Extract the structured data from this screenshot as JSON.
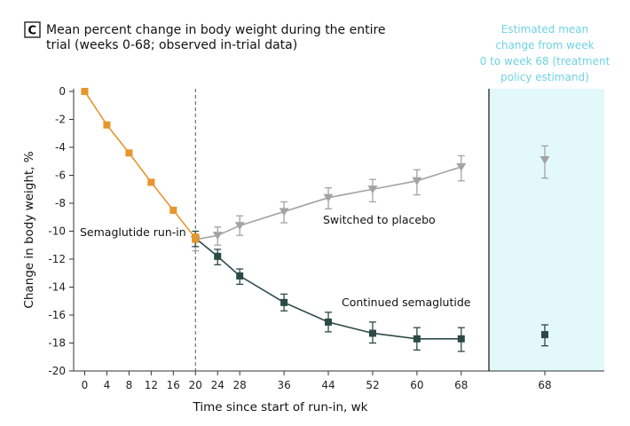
{
  "panel_label": "C",
  "title_lines": [
    "Mean percent change in body weight during the entire",
    "trial (weeks 0-68; observed in-trial data)"
  ],
  "colors": {
    "run_in": "#e8952e",
    "placebo": "#a3a3a3",
    "semaglutide": "#2c4a45",
    "estimand_panel": "#e3f8fa",
    "estimand_text": "#6fd3e3",
    "axis": "#333333"
  },
  "chart_data": {
    "type": "line",
    "title": "Mean percent change in body weight during the entire trial (weeks 0-68; observed in-trial data)",
    "xlabel": "Time since start of run-in, wk",
    "ylabel": "Change in body weight, %",
    "ylim": [
      -20,
      0
    ],
    "yticks": [
      0,
      -2,
      -4,
      -6,
      -8,
      -10,
      -12,
      -14,
      -16,
      -18,
      -20
    ],
    "yticklabels": [
      "0",
      "-2",
      "-4",
      "-6",
      "-8",
      "-10",
      "-12",
      "-14",
      "-16",
      "-18",
      "-20"
    ],
    "xlim": [
      -2,
      73
    ],
    "xticks": [
      0,
      4,
      8,
      12,
      16,
      20,
      24,
      28,
      36,
      44,
      52,
      60,
      68
    ],
    "xticklabels": [
      "0",
      "4",
      "8",
      "12",
      "16",
      "20",
      "24",
      "28",
      "36",
      "44",
      "52",
      "60",
      "68"
    ],
    "randomization_week": 20,
    "series": [
      {
        "name": "Semaglutide run-in",
        "key": "run_in",
        "marker": "square",
        "points": [
          {
            "x": 0,
            "y": 0,
            "lo": 0,
            "hi": 0
          },
          {
            "x": 4,
            "y": -2.4,
            "lo": -2.6,
            "hi": -2.2
          },
          {
            "x": 8,
            "y": -4.4,
            "lo": -4.6,
            "hi": -4.2
          },
          {
            "x": 12,
            "y": -6.5,
            "lo": -6.7,
            "hi": -6.3
          },
          {
            "x": 16,
            "y": -8.5,
            "lo": -8.7,
            "hi": -8.3
          },
          {
            "x": 20,
            "y": -10.5,
            "lo": -10.8,
            "hi": -10.2
          }
        ]
      },
      {
        "name": "Switched to placebo",
        "key": "placebo",
        "marker": "triangle-down",
        "points": [
          {
            "x": 20,
            "y": -10.6,
            "lo": -11.4,
            "hi": -10.2
          },
          {
            "x": 24,
            "y": -10.3,
            "lo": -11.0,
            "hi": -9.7
          },
          {
            "x": 28,
            "y": -9.6,
            "lo": -10.3,
            "hi": -8.9
          },
          {
            "x": 36,
            "y": -8.6,
            "lo": -9.4,
            "hi": -7.9
          },
          {
            "x": 44,
            "y": -7.6,
            "lo": -8.4,
            "hi": -6.9
          },
          {
            "x": 52,
            "y": -7.0,
            "lo": -7.9,
            "hi": -6.3
          },
          {
            "x": 60,
            "y": -6.4,
            "lo": -7.4,
            "hi": -5.6
          },
          {
            "x": 68,
            "y": -5.4,
            "lo": -6.4,
            "hi": -4.6
          }
        ]
      },
      {
        "name": "Continued semaglutide",
        "key": "semaglutide",
        "marker": "square",
        "points": [
          {
            "x": 20,
            "y": -10.5,
            "lo": -11.1,
            "hi": -10.0
          },
          {
            "x": 24,
            "y": -11.8,
            "lo": -12.4,
            "hi": -11.3
          },
          {
            "x": 28,
            "y": -13.2,
            "lo": -13.8,
            "hi": -12.7
          },
          {
            "x": 36,
            "y": -15.1,
            "lo": -15.7,
            "hi": -14.5
          },
          {
            "x": 44,
            "y": -16.5,
            "lo": -17.2,
            "hi": -15.8
          },
          {
            "x": 52,
            "y": -17.3,
            "lo": -18.0,
            "hi": -16.5
          },
          {
            "x": 60,
            "y": -17.7,
            "lo": -18.5,
            "hi": -16.9
          },
          {
            "x": 68,
            "y": -17.7,
            "lo": -18.6,
            "hi": -16.9
          }
        ]
      }
    ],
    "estimand": {
      "label_lines": [
        "Estimated mean",
        "change from week",
        "0 to week 68 (treatment",
        "policy estimand)"
      ],
      "xticklabel": "68",
      "points": [
        {
          "series": "Switched to placebo",
          "key": "placebo",
          "marker": "triangle-down",
          "y": -4.9,
          "lo": -6.2,
          "hi": -3.9
        },
        {
          "series": "Continued semaglutide",
          "key": "semaglutide",
          "marker": "square",
          "y": -17.4,
          "lo": -18.2,
          "hi": -16.7
        }
      ]
    },
    "annotations": [
      {
        "text": "Semaglutide run-in"
      },
      {
        "text": "Switched to placebo"
      },
      {
        "text": "Continued semaglutide"
      }
    ]
  }
}
